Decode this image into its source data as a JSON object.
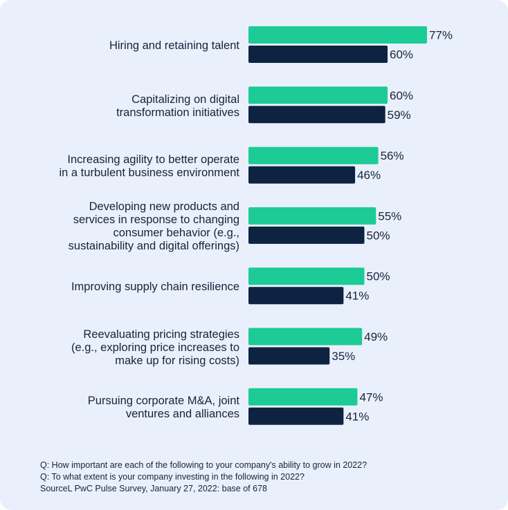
{
  "colors": {
    "background": "#e9f0fc",
    "importance": "#1ccb95",
    "investing": "#0e2341",
    "text": "#1b2138"
  },
  "chart_data": {
    "type": "bar",
    "orientation": "horizontal",
    "value_suffix": "%",
    "categories": [
      "Hiring and retaining talent",
      "Capitalizing on digital\ntransformation initiatives",
      "Increasing agility to better operate\nin a turbulent business environment",
      "Developing new products and\nservices in response to changing\nconsumer behavior (e.g.,\nsustainability and digital offerings)",
      "Improving supply chain resilience",
      "Reevaluating pricing strategies\n(e.g., exploring price increases to\nmake up for rising costs)",
      "Pursuing corporate M&A, joint\nventures and alliances"
    ],
    "series": [
      {
        "color": "#1ccb95",
        "values": [
          77,
          60,
          56,
          55,
          50,
          49,
          47
        ]
      },
      {
        "color": "#0e2341",
        "values": [
          60,
          59,
          46,
          50,
          41,
          35,
          41
        ]
      }
    ],
    "xlim": [
      0,
      100
    ]
  },
  "footnotes": [
    "Q: How important are each of the following to your company's ability to grow in 2022?",
    "Q: To what extent is your company investing in the following in 2022?",
    "SourceL PwC Pulse Survey, January 27, 2022: base of 678"
  ]
}
